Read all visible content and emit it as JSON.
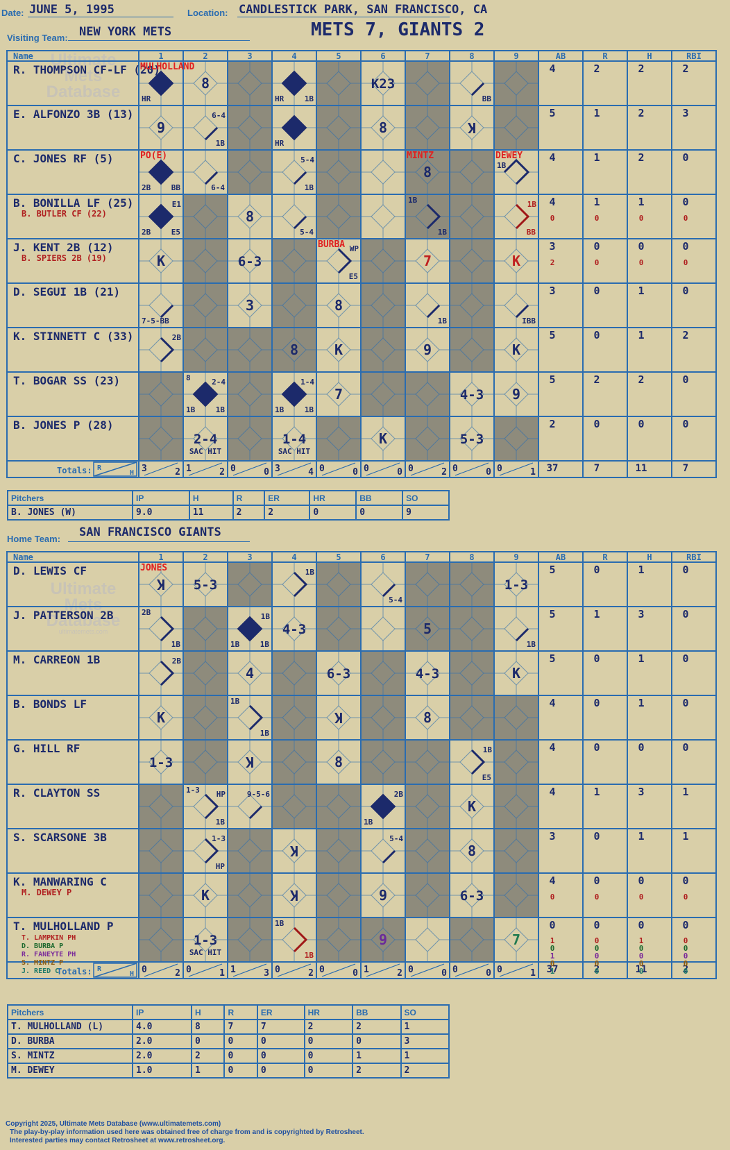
{
  "header": {
    "date_label": "Date:",
    "date": "JUNE 5, 1995",
    "location_label": "Location:",
    "location": "CANDLESTICK PARK, SAN FRANCISCO, CA",
    "visiting_label": "Visiting Team:",
    "visiting_team": "NEW YORK METS",
    "score": "METS 7, GIANTS 2",
    "home_label": "Home Team:",
    "home_team": "SAN FRANCISCO GIANTS"
  },
  "watermark": {
    "line1": "Ultimate",
    "line2": "Mets",
    "line3": "Database",
    "url": "ultimatemets.com"
  },
  "columns": {
    "name": "Name",
    "innings": [
      "1",
      "2",
      "3",
      "4",
      "5",
      "6",
      "7",
      "8",
      "9"
    ],
    "stats": [
      "AB",
      "R",
      "H",
      "RBI"
    ],
    "totals": "Totals:",
    "r": "R",
    "h": "H"
  },
  "visiting_lineup": [
    {
      "name": "R. THOMPSON CF-LF (20)",
      "subs": [],
      "stats": [
        [
          "4",
          "2",
          "2",
          "2"
        ]
      ]
    },
    {
      "name": "E. ALFONZO 3B (13)",
      "subs": [],
      "stats": [
        [
          "5",
          "1",
          "2",
          "3"
        ]
      ]
    },
    {
      "name": "C. JONES RF (5)",
      "subs": [],
      "stats": [
        [
          "4",
          "1",
          "2",
          "0"
        ]
      ]
    },
    {
      "name": "B. BONILLA LF (25)",
      "subs": [
        "B. BUTLER CF (22)"
      ],
      "stats": [
        [
          "4",
          "1",
          "1",
          "0"
        ],
        [
          "0",
          "0",
          "0",
          "0"
        ]
      ]
    },
    {
      "name": "J. KENT 2B (12)",
      "subs": [
        "B. SPIERS 2B (19)"
      ],
      "stats": [
        [
          "3",
          "0",
          "0",
          "0"
        ],
        [
          "2",
          "0",
          "0",
          "0"
        ]
      ]
    },
    {
      "name": "D. SEGUI 1B (21)",
      "subs": [],
      "stats": [
        [
          "3",
          "0",
          "1",
          "0"
        ]
      ]
    },
    {
      "name": "K. STINNETT C (33)",
      "subs": [],
      "stats": [
        [
          "5",
          "0",
          "1",
          "2"
        ]
      ]
    },
    {
      "name": "T. BOGAR SS (23)",
      "subs": [],
      "stats": [
        [
          "5",
          "2",
          "2",
          "0"
        ]
      ]
    },
    {
      "name": "B. JONES P (28)",
      "subs": [],
      "stats": [
        [
          "2",
          "0",
          "0",
          "0"
        ]
      ]
    }
  ],
  "visiting_totals": {
    "innings": [
      [
        "3",
        "2"
      ],
      [
        "1",
        "2"
      ],
      [
        "0",
        "0"
      ],
      [
        "3",
        "4"
      ],
      [
        "0",
        "0"
      ],
      [
        "0",
        "0"
      ],
      [
        "0",
        "2"
      ],
      [
        "0",
        "0"
      ],
      [
        "0",
        "1"
      ]
    ],
    "stats": [
      "37",
      "7",
      "11",
      "7"
    ]
  },
  "home_lineup": [
    {
      "name": "D. LEWIS CF",
      "subs": [],
      "stats": [
        [
          "5",
          "0",
          "1",
          "0"
        ]
      ]
    },
    {
      "name": "J. PATTERSON 2B",
      "subs": [],
      "stats": [
        [
          "5",
          "1",
          "3",
          "0"
        ]
      ]
    },
    {
      "name": "M. CARREON 1B",
      "subs": [],
      "stats": [
        [
          "5",
          "0",
          "1",
          "0"
        ]
      ]
    },
    {
      "name": "B. BONDS LF",
      "subs": [],
      "stats": [
        [
          "4",
          "0",
          "1",
          "0"
        ]
      ]
    },
    {
      "name": "G. HILL RF",
      "subs": [],
      "stats": [
        [
          "4",
          "0",
          "0",
          "0"
        ]
      ]
    },
    {
      "name": "R. CLAYTON SS",
      "subs": [],
      "stats": [
        [
          "4",
          "1",
          "3",
          "1"
        ]
      ]
    },
    {
      "name": "S. SCARSONE 3B",
      "subs": [],
      "stats": [
        [
          "3",
          "0",
          "1",
          "1"
        ]
      ]
    },
    {
      "name": "K. MANWARING C",
      "subs": [
        "M. DEWEY P"
      ],
      "stats": [
        [
          "4",
          "0",
          "0",
          "0"
        ],
        [
          "0",
          "0",
          "0",
          "0"
        ]
      ]
    },
    {
      "name": "T. MULHOLLAND P",
      "subs": [
        "T. LAMPKIN PH",
        "D. BURBA P",
        "R. FANEYTE PH",
        "S. MINTZ P",
        "J. REED C"
      ],
      "stats": [
        [
          "0",
          "0",
          "0",
          "0"
        ],
        [
          "1",
          "0",
          "1",
          "0"
        ],
        [
          "0",
          "0",
          "0",
          "0"
        ],
        [
          "1",
          "0",
          "0",
          "0"
        ],
        [
          "0",
          "0",
          "0",
          "0"
        ],
        [
          "1",
          "0",
          "0",
          "0"
        ]
      ]
    }
  ],
  "home_totals": {
    "innings": [
      [
        "0",
        "2"
      ],
      [
        "0",
        "1"
      ],
      [
        "1",
        "3"
      ],
      [
        "0",
        "2"
      ],
      [
        "0",
        "0"
      ],
      [
        "1",
        "2"
      ],
      [
        "0",
        "0"
      ],
      [
        "0",
        "0"
      ],
      [
        "0",
        "1"
      ]
    ],
    "stats": [
      "37",
      "2",
      "11",
      "2"
    ]
  },
  "visiting_cells": {
    "0": {
      "1": {
        "dia": "hr",
        "bl": "HR",
        "tl": "MULHOLLAND"
      },
      "2": {
        "c": "8"
      },
      "4": {
        "dia": "hr",
        "bl": "HR",
        "br": "1B"
      },
      "6": {
        "c": "K23"
      },
      "8": {
        "dia": "1b",
        "br": "BB"
      }
    },
    "1": {
      "1": {
        "c": "9"
      },
      "2": {
        "dia": "1b",
        "tr": "6-4",
        "br": "1B"
      },
      "4": {
        "dia": "hr",
        "bl": "HR"
      },
      "6": {
        "c": "8"
      },
      "8": {
        "c": "K",
        "rot": true
      }
    },
    "2": {
      "1": {
        "dia": "hr",
        "tl": "PO(E)",
        "bl": "2B",
        "br": "BB"
      },
      "2": {
        "dia": "1b",
        "br": "6-4"
      },
      "4": {
        "dia": "1b",
        "tr": "5-4",
        "br": "1B"
      },
      "7": {
        "c": "8",
        "tl": "MINTZ"
      },
      "9": {
        "dia": "3b",
        "tl": "DEWEY",
        "tlb": "1B"
      }
    },
    "3": {
      "1": {
        "dia": "hr",
        "tr": "E1",
        "bl": "2B",
        "br": "E5"
      },
      "3": {
        "c": "8"
      },
      "4": {
        "dia": "1b",
        "br": "5-4"
      },
      "7": {
        "dia": "2b",
        "tl": "1B",
        "br": "1B"
      },
      "9": {
        "dia": "2b",
        "red": true,
        "tr": "1B",
        "br": "BB"
      }
    },
    "4": {
      "1": {
        "c": "K"
      },
      "3": {
        "c": "6-3"
      },
      "5": {
        "dia": "2b",
        "tl": "BURBA",
        "tr": "WP",
        "br": "E5"
      },
      "7": {
        "c": "7",
        "red": true
      },
      "9": {
        "c": "K",
        "red": true
      }
    },
    "5": {
      "1": {
        "dia": "1b",
        "bl": "7-5-BB"
      },
      "3": {
        "c": "3"
      },
      "5": {
        "c": "8"
      },
      "7": {
        "dia": "1b",
        "br": "1B"
      },
      "9": {
        "dia": "1b",
        "br": "IBB"
      }
    },
    "6": {
      "1": {
        "dia": "2b",
        "tr": "2B"
      },
      "4": {
        "c": "8"
      },
      "5": {
        "c": "K"
      },
      "7": {
        "c": "9"
      },
      "9": {
        "c": "K"
      }
    },
    "7": {
      "2": {
        "dia": "hr",
        "tl": "8",
        "tr": "2-4",
        "bl": "1B",
        "br": "1B"
      },
      "4": {
        "dia": "hr",
        "tr": "1-4",
        "bl": "1B",
        "br": "1B"
      },
      "5": {
        "c": "7"
      },
      "8": {
        "c": "4-3"
      },
      "9": {
        "c": "9"
      }
    },
    "8": {
      "2": {
        "c": "2-4",
        "b": "SAC HIT"
      },
      "4": {
        "c": "1-4",
        "b": "SAC HIT"
      },
      "6": {
        "c": "K"
      },
      "8": {
        "c": "5-3"
      }
    }
  },
  "home_cells": {
    "0": {
      "1": {
        "c": "K",
        "rot": true,
        "tl": "JONES"
      },
      "2": {
        "c": "5-3"
      },
      "4": {
        "dia": "2b",
        "tr": "1B"
      },
      "6": {
        "dia": "1b",
        "br": "5-4"
      },
      "9": {
        "c": "1-3"
      }
    },
    "1": {
      "1": {
        "dia": "2b",
        "tl": "2B",
        "br": "1B"
      },
      "3": {
        "dia": "hr",
        "tr": "1B",
        "bl": "1B",
        "br": "1B"
      },
      "4": {
        "c": "4-3"
      },
      "7": {
        "c": "5"
      },
      "9": {
        "dia": "1b",
        "br": "1B"
      }
    },
    "2": {
      "1": {
        "dia": "2b",
        "tr": "2B"
      },
      "3": {
        "c": "4"
      },
      "5": {
        "c": "6-3"
      },
      "7": {
        "c": "4-3"
      },
      "9": {
        "c": "K"
      }
    },
    "3": {
      "1": {
        "c": "K"
      },
      "3": {
        "dia": "2b",
        "tl": "1B",
        "br": "1B"
      },
      "5": {
        "c": "K",
        "rot": true
      },
      "7": {
        "c": "8"
      }
    },
    "4": {
      "1": {
        "c": "1-3"
      },
      "3": {
        "c": "K",
        "rot": true
      },
      "5": {
        "c": "8"
      },
      "8": {
        "dia": "2b",
        "tr": "1B",
        "br": "E5"
      }
    },
    "5": {
      "2": {
        "dia": "2b",
        "tl": "1-3",
        "tr": "HP",
        "br": "1B"
      },
      "3": {
        "dia": "1b",
        "tr": "9-5-6"
      },
      "6": {
        "dia": "hr",
        "tr": "2B",
        "bl": "1B"
      },
      "8": {
        "c": "K"
      }
    },
    "6": {
      "2": {
        "dia": "2b",
        "tr": "1-3",
        "br": "HP"
      },
      "4": {
        "c": "K",
        "rot": true
      },
      "6": {
        "dia": "1b",
        "tr": "5-4"
      },
      "8": {
        "c": "8"
      }
    },
    "7": {
      "2": {
        "c": "K"
      },
      "4": {
        "c": "K",
        "rot": true
      },
      "6": {
        "c": "9"
      },
      "8": {
        "c": "6-3"
      }
    },
    "8": {
      "2": {
        "c": "1-3",
        "b": "SAC HIT"
      },
      "4": {
        "dia": "2b",
        "red": true,
        "tl": "1B",
        "br": "1B"
      },
      "6": {
        "c": "9",
        "purple": true
      },
      "9": {
        "c": "7",
        "green": true
      }
    }
  },
  "visiting_pitchers": {
    "header": [
      "Pitchers",
      "IP",
      "H",
      "R",
      "ER",
      "HR",
      "BB",
      "SO"
    ],
    "rows": [
      [
        "B. JONES (W)",
        "9.0",
        "11",
        "2",
        "2",
        "0",
        "0",
        "9"
      ]
    ]
  },
  "home_pitchers": {
    "header": [
      "Pitchers",
      "IP",
      "H",
      "R",
      "ER",
      "HR",
      "BB",
      "SO"
    ],
    "rows": [
      [
        "T. MULHOLLAND (L)",
        "4.0",
        "8",
        "7",
        "7",
        "2",
        "2",
        "1"
      ],
      [
        "D. BURBA",
        "2.0",
        "0",
        "0",
        "0",
        "0",
        "0",
        "3"
      ],
      [
        "S. MINTZ",
        "2.0",
        "2",
        "0",
        "0",
        "0",
        "1",
        "1"
      ],
      [
        "M. DEWEY",
        "1.0",
        "1",
        "0",
        "0",
        "0",
        "2",
        "2"
      ]
    ]
  },
  "footer": {
    "line1": "Copyright 2025, Ultimate Mets Database (www.ultimatemets.com)",
    "line2": "The play-by-play information used here was obtained free of charge from and is copyrighted by Retrosheet.",
    "line3": "Interested parties may contact Retrosheet at www.retrosheet.org."
  },
  "colors": {
    "grid": "#2a6cb0",
    "ink": "#1c2a6b",
    "red": "#e02020",
    "gray": "#8e8b7c",
    "paper": "#d9cfa8"
  }
}
